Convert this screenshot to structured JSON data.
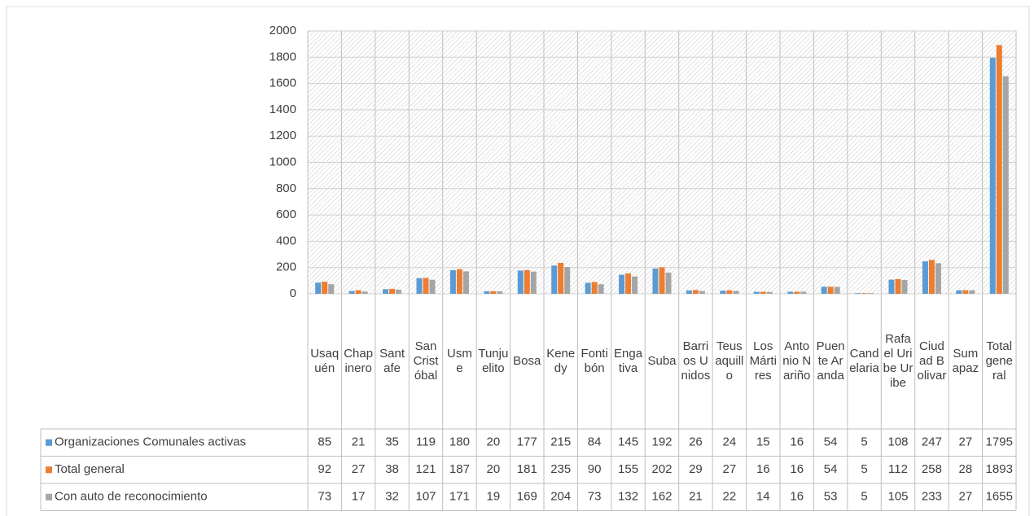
{
  "chart_data": {
    "type": "bar",
    "categories": [
      "Usaquén",
      "Chapinero",
      "Santafe",
      "San Cristóbal",
      "Usme",
      "Tunjuelito",
      "Bosa",
      "Kenedy",
      "Fontibón",
      "Engativa",
      "Suba",
      "Barrios Unidos",
      "Teusaquillo",
      "Los Mártires",
      "Antonio Nariño",
      "Puente Aranda",
      "Candelaria",
      "Rafael Uribe Uribe",
      "Ciudad Bolivar",
      "Sumapaz",
      "Total general"
    ],
    "series": [
      {
        "name": "Organizaciones Comunales activas",
        "color": "#5b9bd5",
        "values": [
          85,
          21,
          35,
          119,
          180,
          20,
          177,
          215,
          84,
          145,
          192,
          26,
          24,
          15,
          16,
          54,
          5,
          108,
          247,
          27,
          1795
        ]
      },
      {
        "name": "Total general",
        "color": "#ed7d31",
        "values": [
          92,
          27,
          38,
          121,
          187,
          20,
          181,
          235,
          90,
          155,
          202,
          29,
          27,
          16,
          16,
          54,
          5,
          112,
          258,
          28,
          1893
        ]
      },
      {
        "name": "Con auto de reconocimiento",
        "color": "#a5a5a5",
        "values": [
          73,
          17,
          32,
          107,
          171,
          19,
          169,
          204,
          73,
          132,
          162,
          21,
          22,
          14,
          16,
          53,
          5,
          105,
          233,
          27,
          1655
        ]
      }
    ],
    "ylim": [
      0,
      2000
    ],
    "yticks": [
      0,
      200,
      400,
      600,
      800,
      1000,
      1200,
      1400,
      1600,
      1800,
      2000
    ],
    "grid": true
  }
}
